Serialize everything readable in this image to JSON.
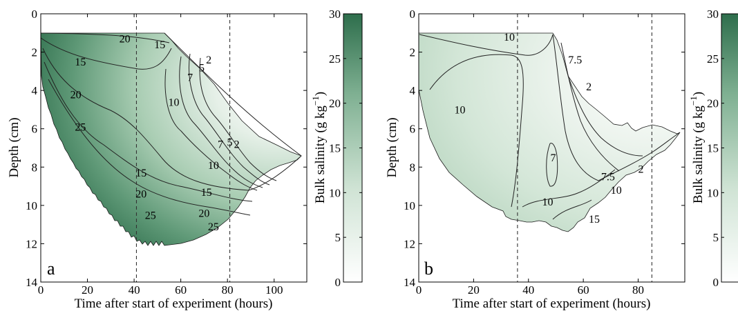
{
  "colors": {
    "low": "#ffffff",
    "high": "#2e6e4c",
    "mid": "#8fbc9f"
  },
  "chart_data": [
    {
      "type": "heatmap",
      "panel_label": "a",
      "xlabel": "Time after start of experiment (hours)",
      "ylabel": "Depth (cm)",
      "xlim": [
        0,
        114
      ],
      "ylim": [
        14,
        0
      ],
      "xticks": [
        "0",
        "20",
        "40",
        "60",
        "80",
        "100"
      ],
      "yticks": [
        "0",
        "2",
        "4",
        "6",
        "8",
        "10",
        "12",
        "14"
      ],
      "dashed_lines_x": [
        41,
        81
      ],
      "colorbar": {
        "label": "Bulk salinity (g kg",
        "label_sup": "−1",
        "label_end": ")",
        "range": [
          0,
          30
        ],
        "ticks": [
          "0",
          "5",
          "10",
          "15",
          "20",
          "25",
          "30"
        ]
      },
      "contour_labels": [
        {
          "text": "20",
          "x": 36,
          "y": 1.5
        },
        {
          "text": "15",
          "x": 51,
          "y": 1.8
        },
        {
          "text": "15",
          "x": 17,
          "y": 2.7
        },
        {
          "text": "20",
          "x": 15,
          "y": 4.4
        },
        {
          "text": "25",
          "x": 17,
          "y": 6.1
        },
        {
          "text": "10",
          "x": 57,
          "y": 4.8
        },
        {
          "text": "7",
          "x": 64,
          "y": 3.5
        },
        {
          "text": "5",
          "x": 69,
          "y": 3.0
        },
        {
          "text": "2",
          "x": 72,
          "y": 2.6
        },
        {
          "text": "10",
          "x": 74,
          "y": 8.1
        },
        {
          "text": "7",
          "x": 77,
          "y": 7.0
        },
        {
          "text": "5",
          "x": 81,
          "y": 6.9
        },
        {
          "text": "2",
          "x": 84,
          "y": 7.0
        },
        {
          "text": "15",
          "x": 43,
          "y": 8.5
        },
        {
          "text": "20",
          "x": 43,
          "y": 9.6
        },
        {
          "text": "25",
          "x": 47,
          "y": 10.7
        },
        {
          "text": "15",
          "x": 71,
          "y": 9.5
        },
        {
          "text": "20",
          "x": 70,
          "y": 10.6
        },
        {
          "text": "25",
          "x": 74,
          "y": 11.3
        }
      ]
    },
    {
      "type": "heatmap",
      "panel_label": "b",
      "xlabel": "Time after start of experiment (hours)",
      "ylabel": "Depth (cm)",
      "xlim": [
        0,
        97
      ],
      "ylim": [
        14,
        0
      ],
      "xticks": [
        "0",
        "20",
        "40",
        "60",
        "80"
      ],
      "yticks": [
        "0",
        "2",
        "4",
        "6",
        "8",
        "10",
        "12",
        "14"
      ],
      "dashed_lines_x": [
        36,
        85
      ],
      "colorbar": {
        "label": "Bulk salinity (g kg",
        "label_sup": "−1",
        "label_end": ")",
        "range": [
          0,
          30
        ],
        "ticks": [
          "0",
          "5",
          "10",
          "15",
          "20",
          "25",
          "30"
        ]
      },
      "contour_labels": [
        {
          "text": "10",
          "x": 33,
          "y": 1.4
        },
        {
          "text": "10",
          "x": 15,
          "y": 5.2
        },
        {
          "text": "7",
          "x": 49,
          "y": 7.7
        },
        {
          "text": "10",
          "x": 47,
          "y": 10.0
        },
        {
          "text": "7.5",
          "x": 57,
          "y": 2.6
        },
        {
          "text": "2",
          "x": 62,
          "y": 4.0
        },
        {
          "text": "7.5",
          "x": 69,
          "y": 8.7
        },
        {
          "text": "10",
          "x": 72,
          "y": 9.4
        },
        {
          "text": "15",
          "x": 64,
          "y": 10.9
        },
        {
          "text": "2",
          "x": 81,
          "y": 8.3
        }
      ]
    }
  ]
}
